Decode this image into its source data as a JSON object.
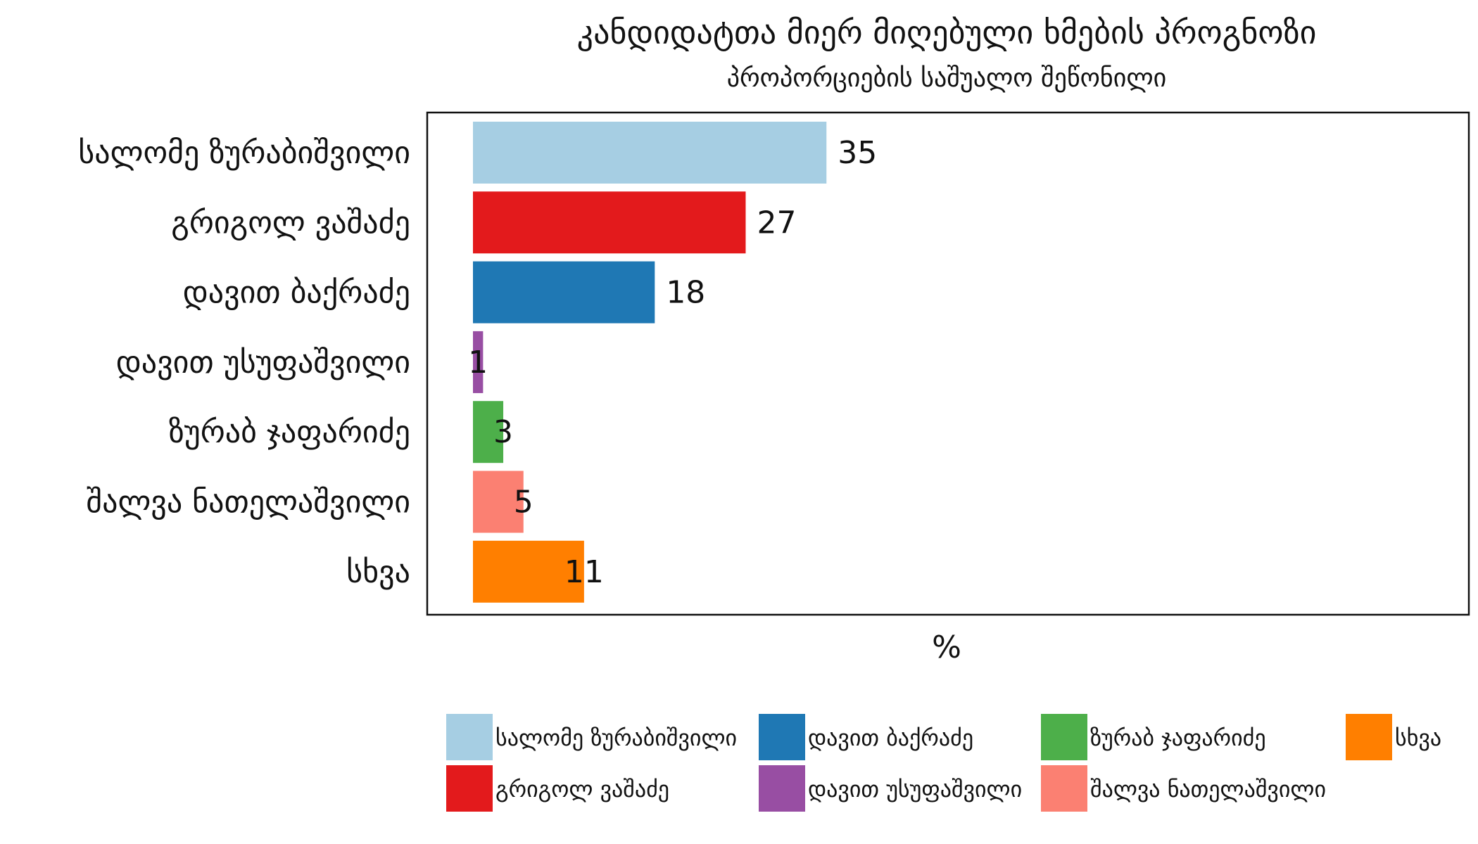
{
  "chart_data": {
    "type": "bar",
    "orientation": "horizontal",
    "title": "კანდიდატთა მიერ მიღებული ხმების პროგნოზი",
    "subtitle": "პროპორციების საშუალო შეწონილი",
    "xlabel": "%",
    "ylabel": "",
    "xlim": [
      0,
      103
    ],
    "grid": false,
    "legend_position": "bottom",
    "categories": [
      "სალომე ზურაბიშვილი",
      "გრიგოლ ვაშაძე",
      "დავით ბაქრაძე",
      "დავით უსუფაშვილი",
      "ზურაბ ჯაფარიძე",
      "შალვა ნათელაშვილი",
      "სხვა"
    ],
    "values": [
      35,
      27,
      18,
      1,
      3,
      5,
      11
    ],
    "colors": [
      "#a6cee3",
      "#e31a1c",
      "#1f78b4",
      "#984ea3",
      "#4daf4a",
      "#fb8072",
      "#ff7f00"
    ],
    "legend": [
      {
        "label": "სალომე ზურაბიშვილი",
        "color": "#a6cee3"
      },
      {
        "label": "დავით ბაქრაძე",
        "color": "#1f78b4"
      },
      {
        "label": "ზურაბ ჯაფარიძე",
        "color": "#4daf4a"
      },
      {
        "label": "სხვა",
        "color": "#ff7f00"
      },
      {
        "label": "გრიგოლ ვაშაძე",
        "color": "#e31a1c"
      },
      {
        "label": "დავით უსუფაშვილი",
        "color": "#984ea3"
      },
      {
        "label": "შალვა ნათელაშვილი",
        "color": "#fb8072"
      }
    ]
  }
}
